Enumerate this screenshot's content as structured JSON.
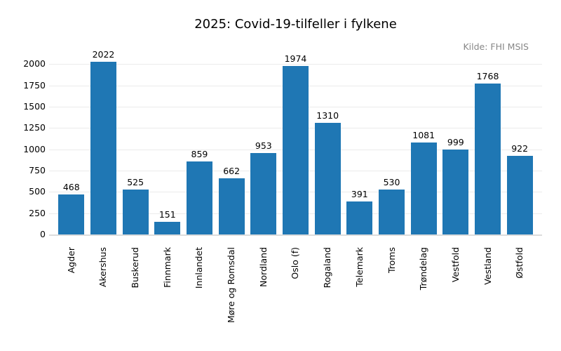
{
  "figure": {
    "title": "2025: Covid-19-tilfeller i fylkene",
    "source": "Kilde: FHI MSIS"
  },
  "chart_data": {
    "type": "bar",
    "title": "2025: Covid-19-tilfeller i fylkene",
    "source_annotation": "Kilde: FHI MSIS",
    "categories": [
      "Agder",
      "Akershus",
      "Buskerud",
      "Finnmark",
      "Innlandet",
      "Møre og Romsdal",
      "Nordland",
      "Oslo (f)",
      "Rogaland",
      "Telemark",
      "Troms",
      "Trøndelag",
      "Vestfold",
      "Vestland",
      "Østfold"
    ],
    "values": [
      468,
      2022,
      525,
      151,
      859,
      662,
      953,
      1974,
      1310,
      391,
      530,
      1081,
      999,
      1768,
      922
    ],
    "xlabel": "",
    "ylabel": "",
    "ylim": [
      0,
      2100
    ],
    "yticks": [
      0,
      250,
      500,
      750,
      1000,
      1250,
      1500,
      1750,
      2000
    ],
    "grid": "horizontal",
    "value_labels_shown": true,
    "x_tick_rotation_deg": 90,
    "legend": null,
    "colors": {
      "bar": "#1f77b4",
      "gridline": "#ebebeb",
      "axis_line": "#dcdcdc",
      "text": "#000000",
      "source_text": "#878787",
      "background": "#ffffff"
    }
  }
}
